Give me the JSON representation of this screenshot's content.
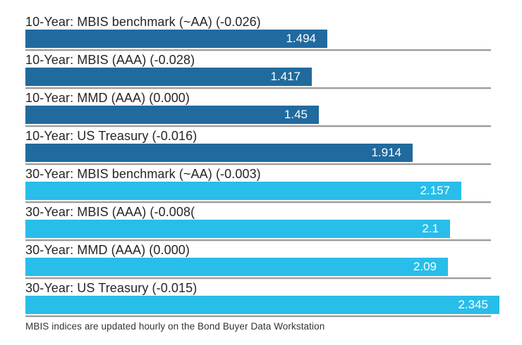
{
  "chart_data": {
    "type": "bar",
    "orientation": "horizontal",
    "title": "",
    "xlabel": "",
    "ylabel": "",
    "xlim": [
      0,
      2.345
    ],
    "grid": "off",
    "legend": "none",
    "colors": {
      "ten_year": "#216a9e",
      "thirty_year": "#29bde9"
    },
    "bars": [
      {
        "label": "10-Year: MBIS benchmark (~AA) (-0.026)",
        "value": 1.494,
        "value_label": "1.494",
        "group": "10-year"
      },
      {
        "label": "10-Year: MBIS (AAA) (-0.028)",
        "value": 1.417,
        "value_label": "1.417",
        "group": "10-year"
      },
      {
        "label": "10-Year: MMD (AAA) (0.000)",
        "value": 1.45,
        "value_label": "1.45",
        "group": "10-year"
      },
      {
        "label": "10-Year: US Treasury (-0.016)",
        "value": 1.914,
        "value_label": "1.914",
        "group": "10-year"
      },
      {
        "label": "30-Year: MBIS benchmark (~AA) (-0.003)",
        "value": 2.157,
        "value_label": "2.157",
        "group": "30-year"
      },
      {
        "label": "30-Year: MBIS (AAA) (-0.008(",
        "value": 2.1,
        "value_label": "2.1",
        "group": "30-year"
      },
      {
        "label": "30-Year: MMD (AAA) (0.000)",
        "value": 2.09,
        "value_label": "2.09",
        "group": "30-year"
      },
      {
        "label": "30-Year: US Treasury (-0.015)",
        "value": 2.345,
        "value_label": "2.345",
        "group": "30-year"
      }
    ],
    "footnote": "MBIS indices are updated hourly on the Bond Buyer Data Workstation"
  }
}
